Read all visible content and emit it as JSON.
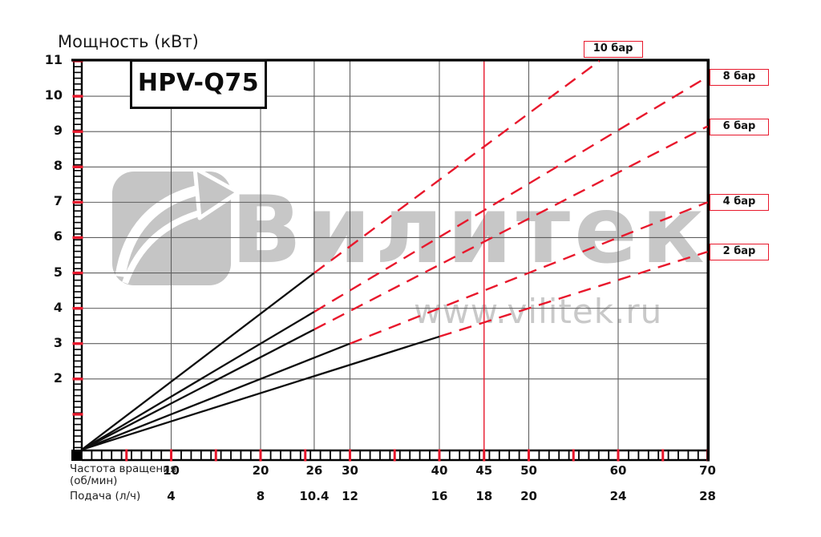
{
  "header": {
    "y_axis_title": "Мощность (кВт)",
    "model": "HPV-Q75"
  },
  "watermark": {
    "brand": "Вилитек",
    "url": "www.vilitek.ru",
    "logo_icon": "arrow-swoosh-icon"
  },
  "colors": {
    "red": "#e8182c",
    "grid": "#5f5f5f",
    "curve_black": "#0d0d0d",
    "watermark_gray": "#c6c6c6",
    "background": "#ffffff"
  },
  "chart_data": {
    "type": "line",
    "title": "HPV-Q75",
    "ylabel": "Мощность (кВт)",
    "y_range_kw": [
      0,
      11
    ],
    "x_range_rpm": [
      0,
      70
    ],
    "grid": true,
    "y_tick_labels_kw": [
      11,
      10,
      9,
      8,
      7,
      6,
      5,
      4,
      3,
      2
    ],
    "horizontal_gridlines_kw": [
      2,
      3,
      4,
      5,
      6,
      7,
      8,
      9,
      10,
      11
    ],
    "vertical_gridlines_rpm": [
      10,
      20,
      26,
      30,
      40,
      50,
      60,
      70
    ],
    "red_marker_line_rpm": 45,
    "minor_tick_red_every": {
      "x_rpm": 5,
      "y_kw": 1
    },
    "x_axis_rows": [
      {
        "caption_line1": "Частота вращения",
        "caption_line2": "(об/мин)"
      },
      {
        "caption_line1": "Подача (л/ч)"
      }
    ],
    "x_ticks": [
      {
        "rpm": 10,
        "flow_lph": 4
      },
      {
        "rpm": 20,
        "flow_lph": 8
      },
      {
        "rpm": 26,
        "flow_lph": 10.4
      },
      {
        "rpm": 30,
        "flow_lph": 12
      },
      {
        "rpm": 40,
        "flow_lph": 16
      },
      {
        "rpm": 45,
        "flow_lph": 18
      },
      {
        "rpm": 50,
        "flow_lph": 20
      },
      {
        "rpm": 60,
        "flow_lph": 24
      },
      {
        "rpm": 70,
        "flow_lph": 28
      }
    ],
    "series": [
      {
        "name": "10 бар",
        "pressure_bar": 10,
        "solid_from": {
          "rpm": 0,
          "kw": 0
        },
        "solid_to": {
          "rpm": 26,
          "kw": 5.0
        },
        "dashed_to": {
          "rpm": 57.9,
          "kw": 11.0
        },
        "label_side": "top"
      },
      {
        "name": "8 бар",
        "pressure_bar": 8,
        "solid_from": {
          "rpm": 0,
          "kw": 0
        },
        "solid_to": {
          "rpm": 26,
          "kw": 3.9
        },
        "dashed_to": {
          "rpm": 70,
          "kw": 10.55
        },
        "label_side": "right"
      },
      {
        "name": "6 бар",
        "pressure_bar": 6,
        "solid_from": {
          "rpm": 0,
          "kw": 0
        },
        "solid_to": {
          "rpm": 26,
          "kw": 3.4
        },
        "dashed_to": {
          "rpm": 70,
          "kw": 9.15
        },
        "label_side": "right"
      },
      {
        "name": "4 бар",
        "pressure_bar": 4,
        "solid_from": {
          "rpm": 0,
          "kw": 0
        },
        "solid_to": {
          "rpm": 30,
          "kw": 3.0
        },
        "dashed_to": {
          "rpm": 70,
          "kw": 7.0
        },
        "label_side": "right"
      },
      {
        "name": "2 бар",
        "pressure_bar": 2,
        "solid_from": {
          "rpm": 0,
          "kw": 0
        },
        "solid_to": {
          "rpm": 40,
          "kw": 3.2
        },
        "dashed_to": {
          "rpm": 70,
          "kw": 5.6
        },
        "label_side": "right"
      }
    ],
    "line_styles": {
      "solid_black": "measured section",
      "dashed_red": "extrapolated pressure curve"
    }
  }
}
